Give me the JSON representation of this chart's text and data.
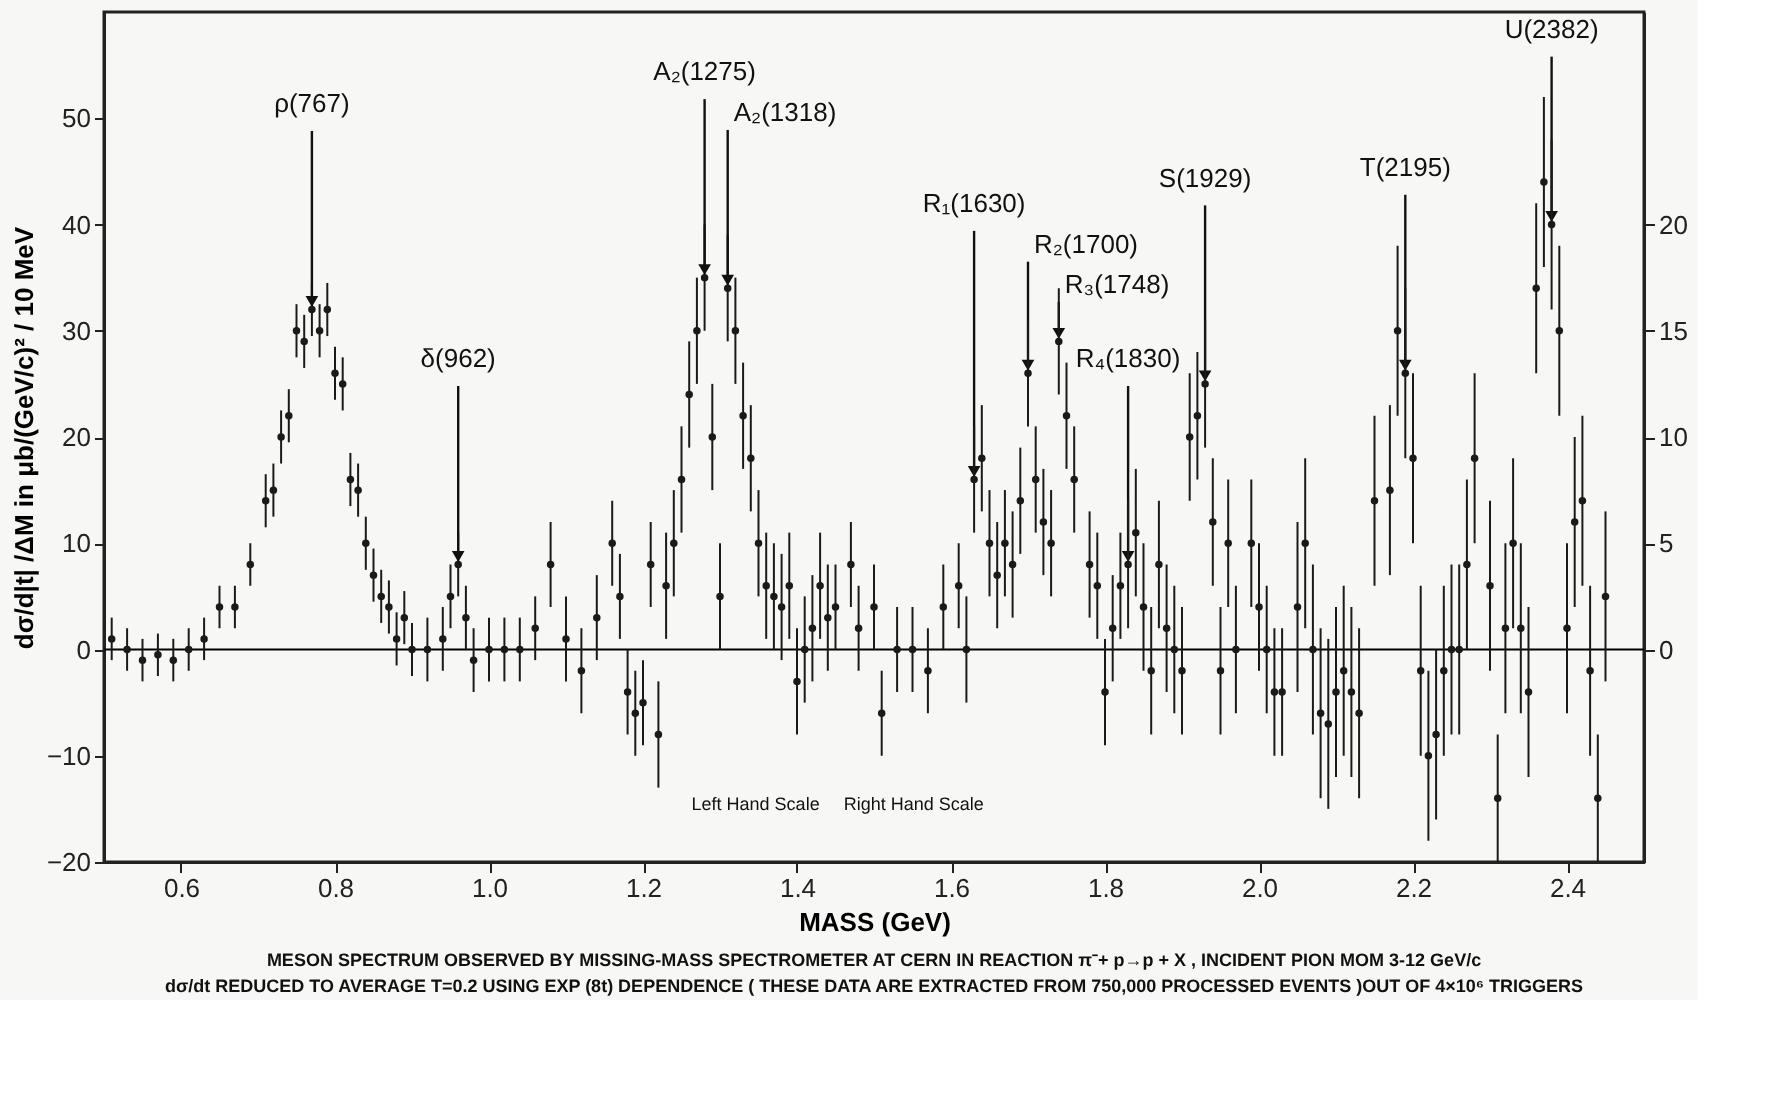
{
  "chart_data": {
    "type": "scatter",
    "xlabel": "MASS (GeV)",
    "ylabel": "dσ/d|t| /ΔM in μb/(GeV/c)² / 10 MeV",
    "xlim": [
      0.5,
      2.5
    ],
    "xticks": [
      0.6,
      0.8,
      {
        "value": 1.0,
        "label": "1.0"
      },
      1.2,
      1.4,
      1.6,
      1.8,
      {
        "value": 2.0,
        "label": "2.0"
      },
      2.2,
      2.4
    ],
    "ylim": [
      -20,
      60
    ],
    "yticks": [
      -20,
      -10,
      0,
      10,
      20,
      30,
      40,
      50
    ],
    "y2lim": [
      -10,
      30
    ],
    "y2ticks": [
      0,
      5,
      10,
      15,
      20
    ],
    "grid": false,
    "marker": "circle",
    "ref_lines": [
      {
        "axis": "y",
        "value": 0,
        "color": "#000000"
      }
    ],
    "series": [
      {
        "color": "#1a1a1a",
        "x": [
          0.51,
          0.53,
          0.55,
          0.57,
          0.59,
          0.61,
          0.63,
          0.65,
          0.67,
          0.69,
          0.71,
          0.72,
          0.73,
          0.74,
          0.75,
          0.76,
          0.77,
          0.78,
          0.79,
          0.8,
          0.81,
          0.82,
          0.83,
          0.84,
          0.85,
          0.86,
          0.87,
          0.88,
          0.89,
          0.9,
          0.92,
          0.94,
          0.95,
          0.96,
          0.97,
          0.98,
          1.0,
          1.02,
          1.04,
          1.06,
          1.08,
          1.1,
          1.12,
          1.14,
          1.16,
          1.17,
          1.18,
          1.19,
          1.2,
          1.21,
          1.22,
          1.23,
          1.24,
          1.25,
          1.26,
          1.27,
          1.28,
          1.29,
          1.3,
          1.31,
          1.32,
          1.33,
          1.34,
          1.35,
          1.36,
          1.37,
          1.38,
          1.39,
          1.4,
          1.41,
          1.42,
          1.43,
          1.44
        ],
        "values": [
          1,
          0,
          -1,
          -0.5,
          -1,
          0,
          1,
          4,
          4,
          8,
          14,
          15,
          20,
          22,
          30,
          29,
          32,
          30,
          32,
          26,
          25,
          16,
          15,
          10,
          7,
          5,
          4,
          1,
          3,
          0,
          0,
          1,
          5,
          8,
          3,
          -1,
          0,
          0,
          0,
          2,
          8,
          1,
          -2,
          3,
          10,
          5,
          -4,
          -6,
          -5,
          8,
          -8,
          6,
          10,
          16,
          24,
          30,
          35,
          20,
          5,
          34,
          30,
          22,
          18,
          10,
          6,
          5,
          4,
          6,
          -3,
          0,
          2,
          6,
          3
        ],
        "errors": [
          2,
          2,
          2,
          2,
          2,
          2,
          2,
          2,
          2,
          2,
          2.5,
          2.5,
          2.5,
          2.5,
          2.5,
          2.5,
          2.5,
          2.5,
          2.5,
          2.5,
          2.5,
          2.5,
          2.5,
          2.5,
          2.5,
          2.5,
          2.5,
          2.5,
          2.5,
          2.5,
          3,
          3,
          3,
          3,
          3,
          3,
          3,
          3,
          3,
          3,
          4,
          4,
          4,
          4,
          4,
          4,
          4,
          4,
          4,
          4,
          5,
          5,
          5,
          5,
          5,
          5,
          5,
          5,
          5,
          5,
          5,
          5,
          5,
          5,
          5,
          5,
          5,
          5,
          5,
          5,
          5,
          5,
          5
        ]
      },
      {
        "color": "#1a1a1a",
        "axis": "y2",
        "x": [
          1.45,
          1.47,
          1.48,
          1.5,
          1.51,
          1.53,
          1.55,
          1.57,
          1.59,
          1.61,
          1.62,
          1.63,
          1.64,
          1.65,
          1.66,
          1.67,
          1.68,
          1.69,
          1.7,
          1.71,
          1.72,
          1.73,
          1.74,
          1.75,
          1.76,
          1.78,
          1.79,
          1.8,
          1.81,
          1.82,
          1.83,
          1.84,
          1.85,
          1.86,
          1.87,
          1.88,
          1.89,
          1.9,
          1.91,
          1.92,
          1.93,
          1.94,
          1.95,
          1.96,
          1.97,
          1.99,
          2.0,
          2.01,
          2.02,
          2.03,
          2.05,
          2.06,
          2.07,
          2.08,
          2.09,
          2.1,
          2.11,
          2.12,
          2.13,
          2.15,
          2.17,
          2.18,
          2.19,
          2.2,
          2.21,
          2.22,
          2.23,
          2.24,
          2.25,
          2.26,
          2.27,
          2.28,
          2.3,
          2.31,
          2.32,
          2.33,
          2.34,
          2.35,
          2.36,
          2.37,
          2.38,
          2.39,
          2.4,
          2.41,
          2.42,
          2.43,
          2.44,
          2.45
        ],
        "values": [
          2,
          4,
          1,
          2,
          -3,
          0,
          0,
          -1,
          2,
          3,
          0,
          8,
          9,
          5,
          3.5,
          5,
          4,
          7,
          13,
          8,
          6,
          5,
          14.5,
          11,
          8,
          4,
          3,
          -2,
          1,
          3,
          4,
          5.5,
          2,
          -1,
          4,
          1,
          0,
          -1,
          10,
          11,
          12.5,
          6,
          -1,
          5,
          0,
          5,
          2,
          0,
          -2,
          -2,
          2,
          5,
          0,
          -3,
          -3.5,
          -2,
          -1,
          -2,
          -3,
          7,
          7.5,
          15,
          13,
          9,
          -1,
          -5,
          -4,
          -1,
          0,
          0,
          4,
          9,
          3,
          -7,
          1,
          5,
          1,
          -2,
          17,
          22,
          20,
          15,
          1,
          6,
          7,
          -1,
          -7,
          2.5
        ],
        "errors": [
          2,
          2,
          2,
          2,
          2,
          2,
          2,
          2,
          2,
          2,
          2.5,
          2.5,
          2.5,
          2.5,
          2.5,
          2.5,
          2.5,
          2.5,
          2.5,
          2.5,
          2.5,
          2.5,
          2.5,
          2.5,
          2.5,
          2.5,
          2.5,
          2.5,
          2.5,
          2.5,
          3,
          3,
          3,
          3,
          3,
          3,
          3,
          3,
          3,
          3,
          3,
          3,
          3,
          3,
          3,
          3,
          3,
          3,
          3,
          3,
          4,
          4,
          4,
          4,
          4,
          4,
          4,
          4,
          4,
          4,
          4,
          4,
          4,
          4,
          4,
          4,
          4,
          4,
          4,
          4,
          4,
          4,
          4,
          3,
          4,
          4,
          4,
          4,
          4,
          4,
          4,
          4,
          4,
          4,
          4,
          4,
          3,
          4
        ]
      }
    ],
    "annotations": [
      {
        "text": "ρ(767)",
        "x": 0.77,
        "y": 32
      },
      {
        "text": "δ(962)",
        "x": 0.96,
        "y": 8
      },
      {
        "text": "A₂(1275)",
        "x": 1.28,
        "y": 35
      },
      {
        "text": "A₂(1318)",
        "x": 1.31,
        "y": 34
      },
      {
        "text": "R₁(1630)",
        "x": 1.63,
        "y": 16
      },
      {
        "text": "R₂(1700)",
        "x": 1.7,
        "y": 26
      },
      {
        "text": "R₃(1748)",
        "x": 1.74,
        "y": 29
      },
      {
        "text": "R₄(1830)",
        "x": 1.83,
        "y": 8
      },
      {
        "text": "S(1929)",
        "x": 1.93,
        "y": 25
      },
      {
        "text": "T(2195)",
        "x": 2.19,
        "y": 26
      },
      {
        "text": "U(2382)",
        "x": 2.38,
        "y": 40
      },
      "Left Hand Scale",
      "Right Hand Scale",
      "MESON SPECTRUM OBSERVED BY MISSING-MASS SPECTROMETER AT CERN IN REACTION π⁻+ p→p + X , INCIDENT PION MOM 3-12 GeV/c",
      "dσ/dt REDUCED TO AVERAGE T=0.2 USING EXP (8t) DEPENDENCE ( THESE DATA ARE EXTRACTED FROM 750,000 PROCESSED EVENTS )OUT OF 4×10⁶ TRIGGERS"
    ]
  }
}
